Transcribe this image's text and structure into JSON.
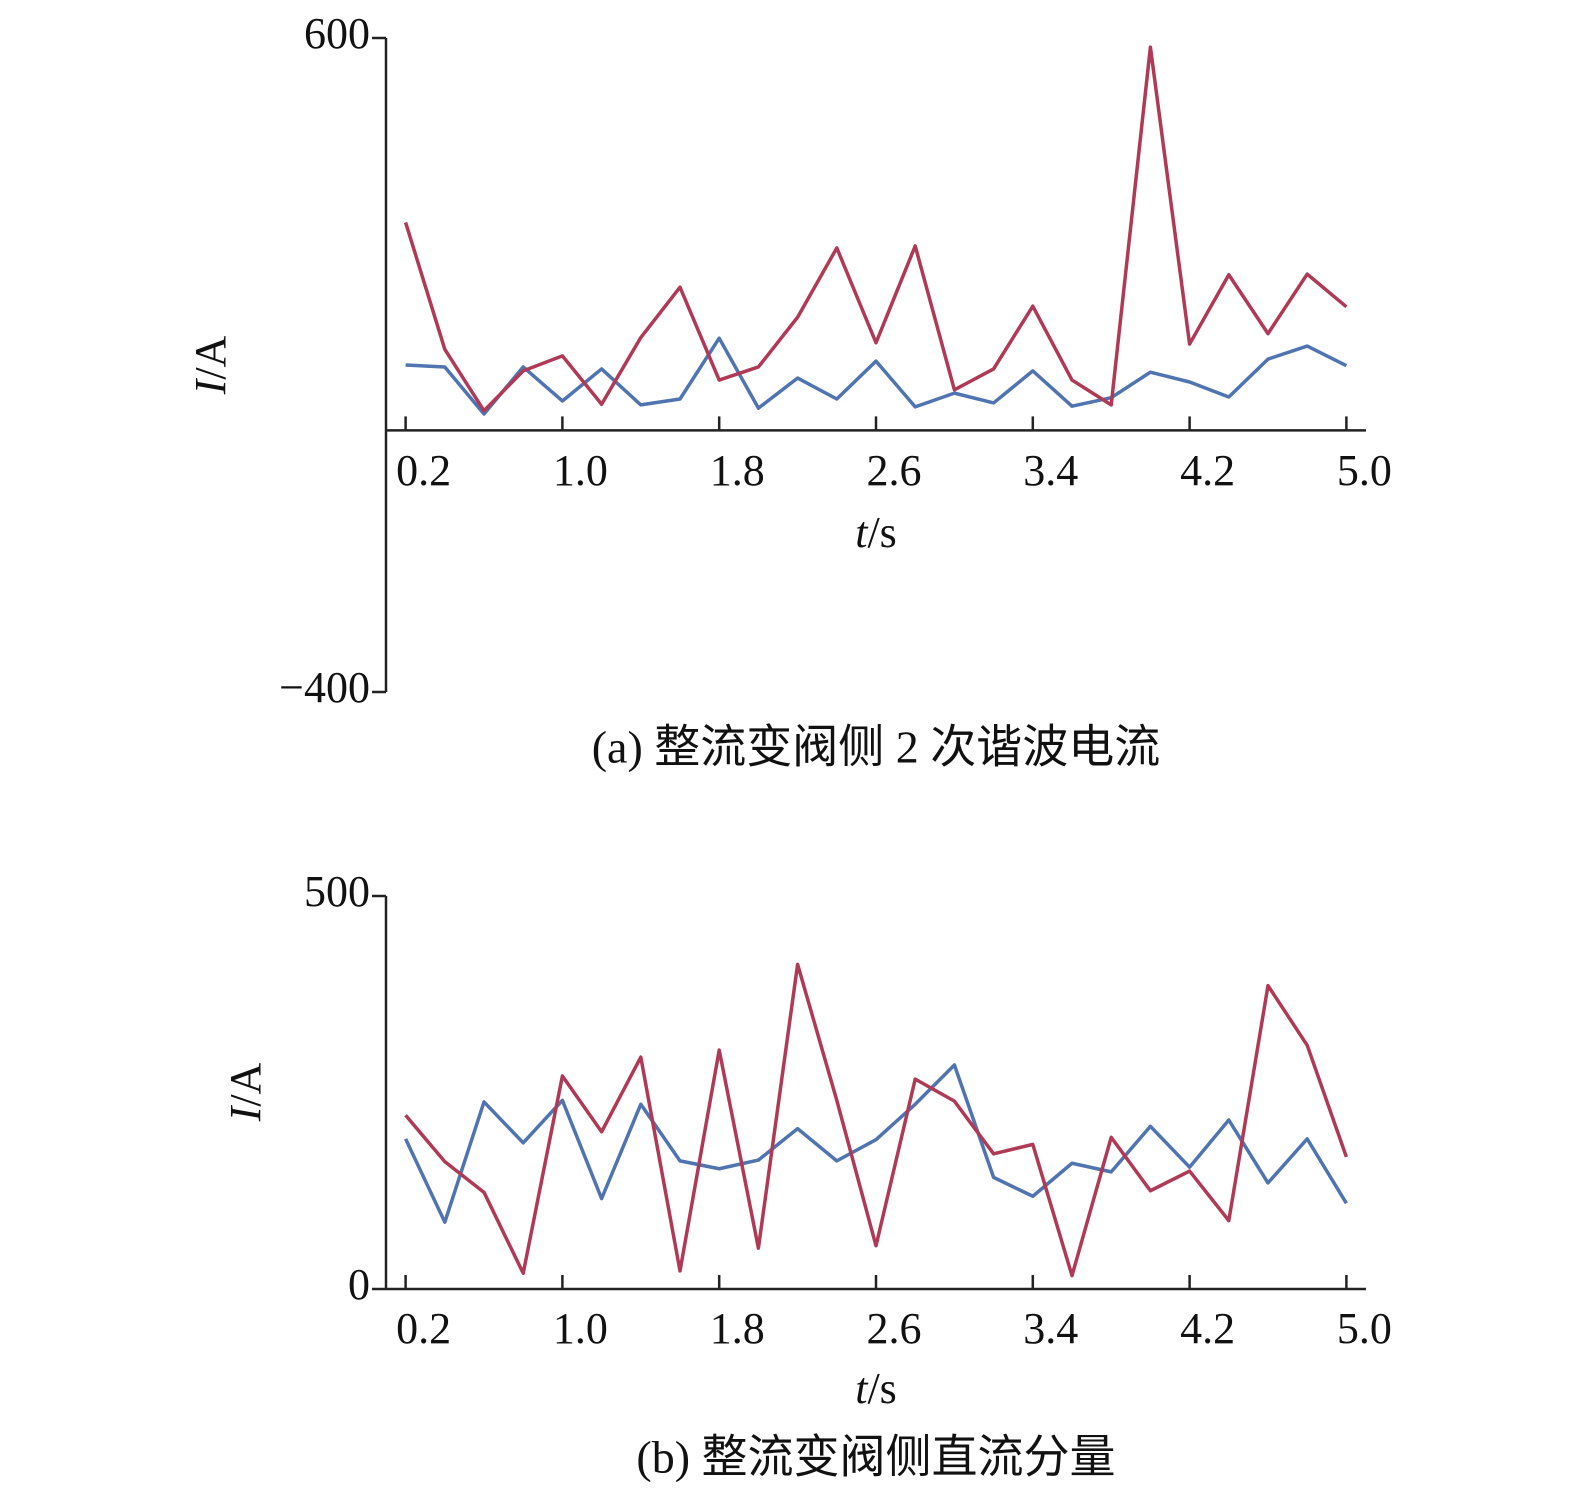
{
  "chart_data": [
    {
      "type": "line",
      "title": "(a) 整流变阀侧 2 次谐波电流",
      "x_label": "t/s",
      "y_label": "I/A",
      "x": [
        0.2,
        0.4,
        0.6,
        0.8,
        1.0,
        1.2,
        1.4,
        1.6,
        1.8,
        2.0,
        2.2,
        2.4,
        2.6,
        2.8,
        3.0,
        3.2,
        3.4,
        3.6,
        3.8,
        4.0,
        4.2,
        4.4,
        4.6,
        4.8,
        5.0
      ],
      "xlim": [
        0.1,
        5.1
      ],
      "xticks": [
        0.2,
        {
          "value": 1,
          "label": "1.0"
        },
        1.8,
        2.6,
        3.4,
        4.2,
        {
          "value": 5,
          "label": "5.0"
        }
      ],
      "ylim": [
        -400,
        600
      ],
      "yticks": [
        {
          "value": -400,
          "label": "−400"
        },
        600
      ],
      "series": [
        {
          "color": "#4f74b0",
          "values": [
            100,
            97,
            25,
            97,
            45,
            94,
            39,
            48,
            141,
            34,
            80,
            48,
            106,
            36,
            57,
            42,
            91,
            37,
            50,
            89,
            74,
            51,
            109,
            129,
            99
          ]
        },
        {
          "color": "#b03a55",
          "values": [
            318,
            124,
            30,
            91,
            114,
            40,
            142,
            219,
            77,
            97,
            173,
            279,
            134,
            282,
            62,
            94,
            190,
            77,
            39,
            586,
            132,
            238,
            148,
            239,
            189
          ]
        }
      ]
    },
    {
      "type": "line",
      "title": "(b) 整流变阀侧直流分量",
      "x_label": "t/s",
      "y_label": "I/A",
      "x": [
        0.2,
        0.4,
        0.6,
        0.8,
        1.0,
        1.2,
        1.4,
        1.6,
        1.8,
        2.0,
        2.2,
        2.4,
        2.6,
        2.8,
        3.0,
        3.2,
        3.4,
        3.6,
        3.8,
        4.0,
        4.2,
        4.4,
        4.6,
        4.8,
        5.0
      ],
      "xlim": [
        0.1,
        5.1
      ],
      "xticks": [
        0.2,
        {
          "value": 1,
          "label": "1.0"
        },
        1.8,
        2.6,
        3.4,
        4.2,
        {
          "value": 5,
          "label": "5.0"
        }
      ],
      "ylim": [
        0,
        500
      ],
      "yticks": [
        0,
        500
      ],
      "series": [
        {
          "color": "#4f74b0",
          "values": [
            191,
            85,
            238,
            186,
            240,
            115,
            235,
            163,
            153,
            164,
            204,
            163,
            190,
            235,
            285,
            142,
            118,
            160,
            149,
            207,
            155,
            215,
            135,
            191,
            109
          ]
        },
        {
          "color": "#b03a55",
          "values": [
            221,
            162,
            123,
            20,
            271,
            200,
            295,
            23,
            304,
            52,
            413,
            240,
            55,
            267,
            239,
            172,
            184,
            17,
            193,
            125,
            150,
            87,
            386,
            310,
            168
          ]
        }
      ]
    }
  ]
}
